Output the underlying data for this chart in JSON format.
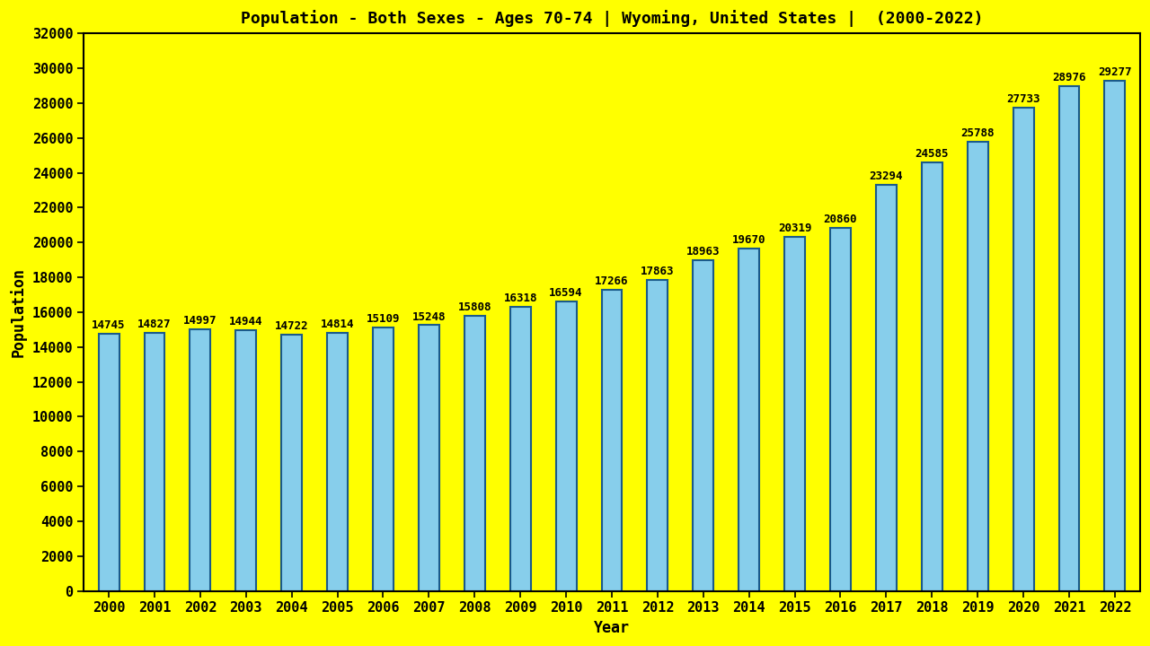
{
  "title": "Population - Both Sexes - Ages 70-74 | Wyoming, United States |  (2000-2022)",
  "xlabel": "Year",
  "ylabel": "Population",
  "background_color": "#FFFF00",
  "bar_color": "#87CEEB",
  "bar_edgecolor": "#1a5a8a",
  "years": [
    2000,
    2001,
    2002,
    2003,
    2004,
    2005,
    2006,
    2007,
    2008,
    2009,
    2010,
    2011,
    2012,
    2013,
    2014,
    2015,
    2016,
    2017,
    2018,
    2019,
    2020,
    2021,
    2022
  ],
  "values": [
    14745,
    14827,
    14997,
    14944,
    14722,
    14814,
    15109,
    15248,
    15808,
    16318,
    16594,
    17266,
    17863,
    18963,
    19670,
    20319,
    20860,
    23294,
    24585,
    25788,
    27733,
    28976,
    29277
  ],
  "ylim": [
    0,
    32000
  ],
  "yticks": [
    0,
    2000,
    4000,
    6000,
    8000,
    10000,
    12000,
    14000,
    16000,
    18000,
    20000,
    22000,
    24000,
    26000,
    28000,
    30000,
    32000
  ],
  "title_fontsize": 13,
  "axis_label_fontsize": 12,
  "tick_fontsize": 11,
  "value_label_fontsize": 9,
  "bar_width": 0.45
}
